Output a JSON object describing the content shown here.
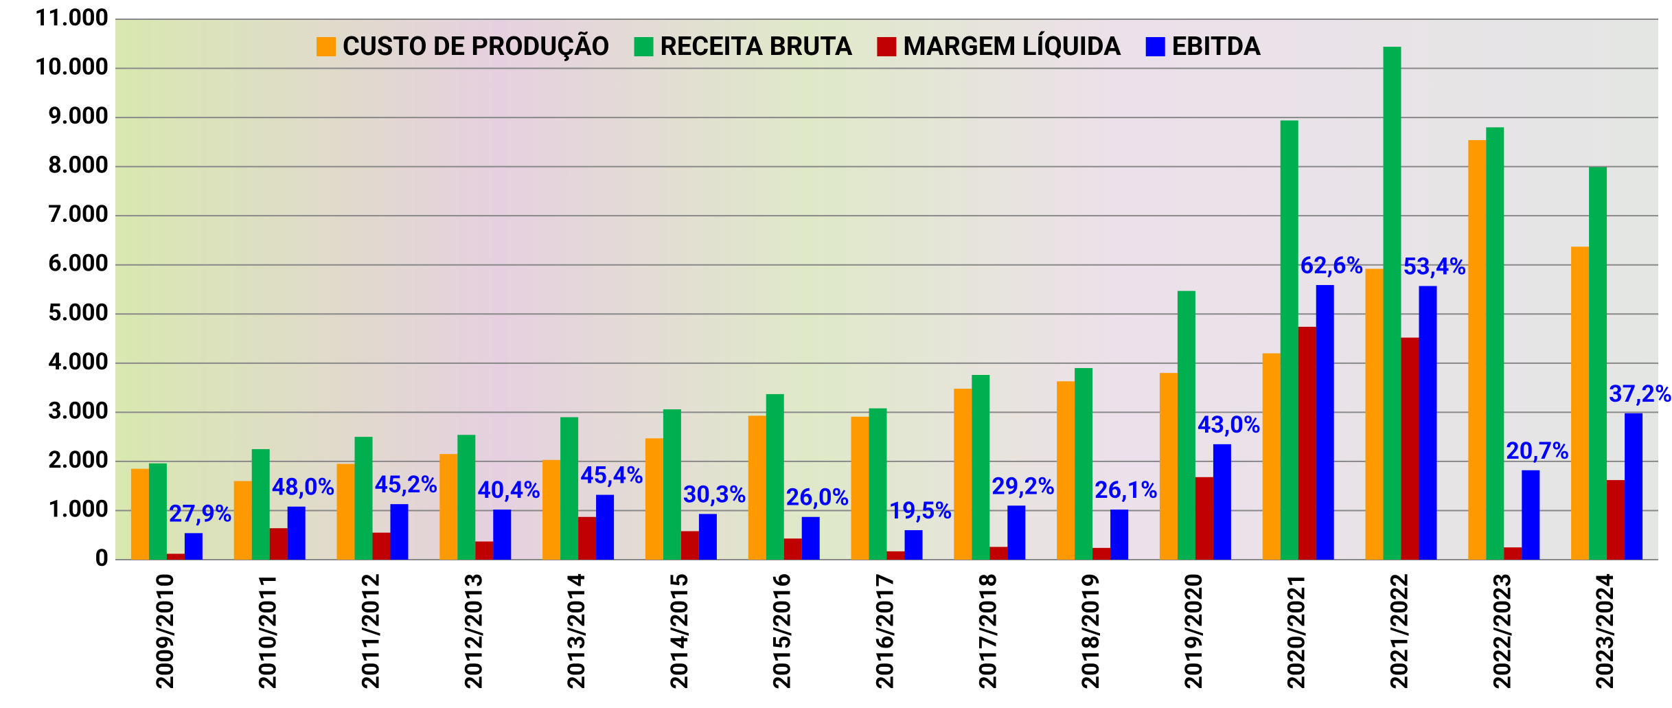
{
  "chart_data": {
    "type": "bar",
    "categories": [
      "2009/2010",
      "2010/2011",
      "2011/2012",
      "2012/2013",
      "2013/2014",
      "2014/2015",
      "2015/2016",
      "2016/2017",
      "2017/2018",
      "2018/2019",
      "2019/2020",
      "2020/2021",
      "2021/2022",
      "2022/2023",
      "2023/2024"
    ],
    "series": [
      {
        "name": "CUSTO DE PRODUÇÃO",
        "color": "#ff9900",
        "values": [
          1850,
          1600,
          1950,
          2150,
          2030,
          2470,
          2930,
          2910,
          3480,
          3630,
          3800,
          4200,
          5920,
          8540,
          6370
        ]
      },
      {
        "name": "RECEITA BRUTA",
        "color": "#00b050",
        "values": [
          1960,
          2250,
          2500,
          2540,
          2900,
          3060,
          3370,
          3080,
          3760,
          3900,
          5470,
          8940,
          10440,
          8800,
          7990
        ]
      },
      {
        "name": "MARGEM LÍQUIDA",
        "color": "#c00000",
        "values": [
          120,
          640,
          550,
          370,
          870,
          580,
          430,
          170,
          260,
          240,
          1680,
          4740,
          4520,
          250,
          1620
        ]
      },
      {
        "name": "EBITDA",
        "color": "#0000ff",
        "values": [
          540,
          1080,
          1130,
          1020,
          1320,
          930,
          870,
          600,
          1100,
          1020,
          2350,
          5590,
          5570,
          1820,
          2980
        ]
      }
    ],
    "annotations": [
      "27,9%",
      "48,0%",
      "45,2%",
      "40,4%",
      "45,4%",
      "30,3%",
      "26,0%",
      "19,5%",
      "29,2%",
      "26,1%",
      "43,0%",
      "62,6%",
      "53,4%",
      "20,7%",
      "37,2%"
    ],
    "annotation_color": "#0000ff",
    "ylim": [
      0,
      11000
    ],
    "yticks": [
      0,
      {
        "value": 1000,
        "label": "1.000"
      },
      {
        "value": 2000,
        "label": "2.000"
      },
      {
        "value": 3000,
        "label": "3.000"
      },
      {
        "value": 4000,
        "label": "4.000"
      },
      {
        "value": 5000,
        "label": "5.000"
      },
      {
        "value": 6000,
        "label": "6.000"
      },
      {
        "value": 7000,
        "label": "7.000"
      },
      {
        "value": 8000,
        "label": "8.000"
      },
      {
        "value": 9000,
        "label": "9.000"
      },
      {
        "value": 10000,
        "label": "10.000"
      },
      {
        "value": 11000,
        "label": "11.000"
      }
    ],
    "grid": true,
    "legend": "top"
  }
}
